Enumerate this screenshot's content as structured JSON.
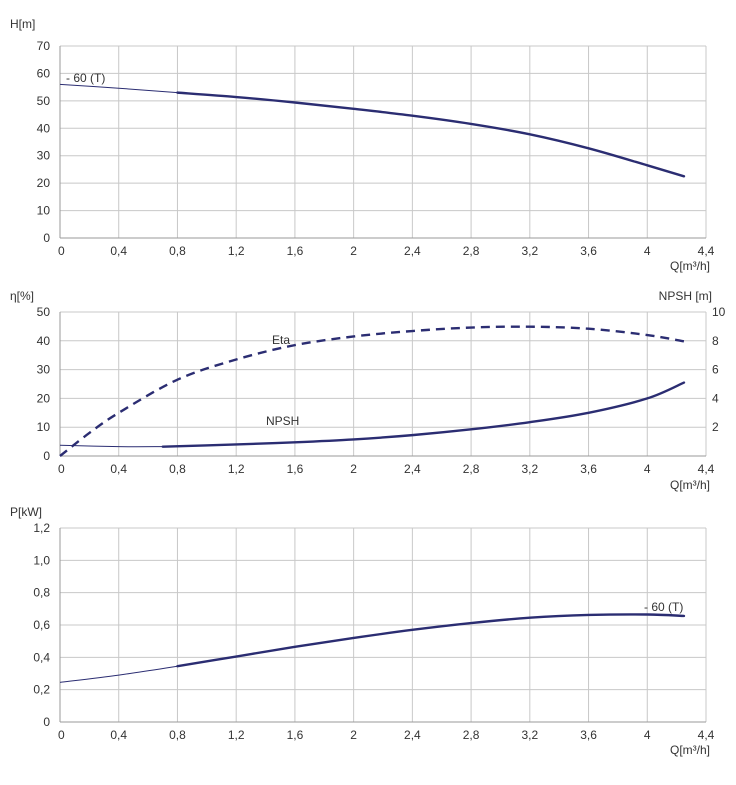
{
  "colors": {
    "curve": "#2b2d72",
    "grid": "#c8c8c8",
    "text": "#333333"
  },
  "chart_data": [
    {
      "type": "line",
      "id": "head",
      "ylabel": "H[m]",
      "xlabel": "Q[m³/h]",
      "xlim": [
        0,
        4.4
      ],
      "ylim": [
        0,
        70
      ],
      "xticks": [
        0,
        0.4,
        0.8,
        1.2,
        1.6,
        2,
        2.4,
        2.8,
        3.2,
        3.6,
        4,
        4.4
      ],
      "xtick_labels": [
        "0",
        "0,4",
        "0,8",
        "1,2",
        "1,6",
        "2",
        "2,4",
        "2,8",
        "3,2",
        "3,6",
        "4",
        "4,4"
      ],
      "yticks": [
        0,
        10,
        20,
        30,
        40,
        50,
        60,
        70
      ],
      "ytick_labels": [
        "0",
        "10",
        "20",
        "30",
        "40",
        "50",
        "60",
        "70"
      ],
      "grid": true,
      "series": [
        {
          "name": "- 60 (T)",
          "style": "thin-to-bold",
          "bold_from": 0.8,
          "x": [
            0,
            0.4,
            0.8,
            1.2,
            1.6,
            2.0,
            2.4,
            2.8,
            3.2,
            3.6,
            4.0,
            4.25
          ],
          "y": [
            56,
            54.6,
            53,
            51.4,
            49.4,
            47.1,
            44.6,
            41.6,
            37.8,
            32.7,
            26.5,
            22.5
          ]
        }
      ]
    },
    {
      "type": "line",
      "id": "eta-npsh",
      "ylabel": "η[%]",
      "y2label": "NPSH [m]",
      "xlabel": "Q[m³/h]",
      "xlim": [
        0,
        4.4
      ],
      "ylim": [
        0,
        50
      ],
      "y2lim": [
        0,
        10
      ],
      "xticks": [
        0,
        0.4,
        0.8,
        1.2,
        1.6,
        2,
        2.4,
        2.8,
        3.2,
        3.6,
        4,
        4.4
      ],
      "xtick_labels": [
        "0",
        "0,4",
        "0,8",
        "1,2",
        "1,6",
        "2",
        "2,4",
        "2,8",
        "3,2",
        "3,6",
        "4",
        "4,4"
      ],
      "yticks": [
        0,
        10,
        20,
        30,
        40,
        50
      ],
      "ytick_labels": [
        "0",
        "10",
        "20",
        "30",
        "40",
        "50"
      ],
      "y2ticks": [
        2,
        4,
        6,
        8,
        10
      ],
      "y2tick_labels": [
        "2",
        "4",
        "6",
        "8",
        "10"
      ],
      "grid": true,
      "series": [
        {
          "name": "Eta",
          "axis": "left",
          "style": "dashed",
          "x": [
            0,
            0.2,
            0.4,
            0.8,
            1.2,
            1.6,
            2.0,
            2.4,
            2.8,
            3.2,
            3.6,
            4.0,
            4.25
          ],
          "y": [
            0,
            8,
            15,
            26.5,
            33.5,
            38.5,
            41.5,
            43.4,
            44.6,
            44.9,
            44.2,
            42,
            39.8
          ]
        },
        {
          "name": "NPSH",
          "axis": "right",
          "style": "thin-to-bold",
          "bold_from": 0.7,
          "x": [
            0,
            0.4,
            0.7,
            1.2,
            1.6,
            2.0,
            2.4,
            2.8,
            3.2,
            3.6,
            4.0,
            4.25
          ],
          "y": [
            0.75,
            0.65,
            0.65,
            0.8,
            0.95,
            1.15,
            1.45,
            1.85,
            2.35,
            3.0,
            4.0,
            5.1
          ]
        }
      ]
    },
    {
      "type": "line",
      "id": "power",
      "ylabel": "P[kW]",
      "xlabel": "Q[m³/h]",
      "xlim": [
        0,
        4.4
      ],
      "ylim": [
        0,
        1.2
      ],
      "xticks": [
        0,
        0.4,
        0.8,
        1.2,
        1.6,
        2,
        2.4,
        2.8,
        3.2,
        3.6,
        4,
        4.4
      ],
      "xtick_labels": [
        "0",
        "0,4",
        "0,8",
        "1,2",
        "1,6",
        "2",
        "2,4",
        "2,8",
        "3,2",
        "3,6",
        "4",
        "4,4"
      ],
      "yticks": [
        0,
        0.2,
        0.4,
        0.6,
        0.8,
        1.0,
        1.2
      ],
      "ytick_labels": [
        "0",
        "0,2",
        "0,4",
        "0,6",
        "0,8",
        "1,0",
        "1,2"
      ],
      "grid": true,
      "series": [
        {
          "name": "- 60 (T)",
          "style": "thin-to-bold",
          "bold_from": 0.8,
          "x": [
            0,
            0.4,
            0.8,
            1.2,
            1.6,
            2.0,
            2.4,
            2.8,
            3.2,
            3.6,
            4.0,
            4.25
          ],
          "y": [
            0.245,
            0.29,
            0.345,
            0.405,
            0.465,
            0.52,
            0.57,
            0.612,
            0.645,
            0.662,
            0.665,
            0.656
          ]
        }
      ]
    }
  ]
}
